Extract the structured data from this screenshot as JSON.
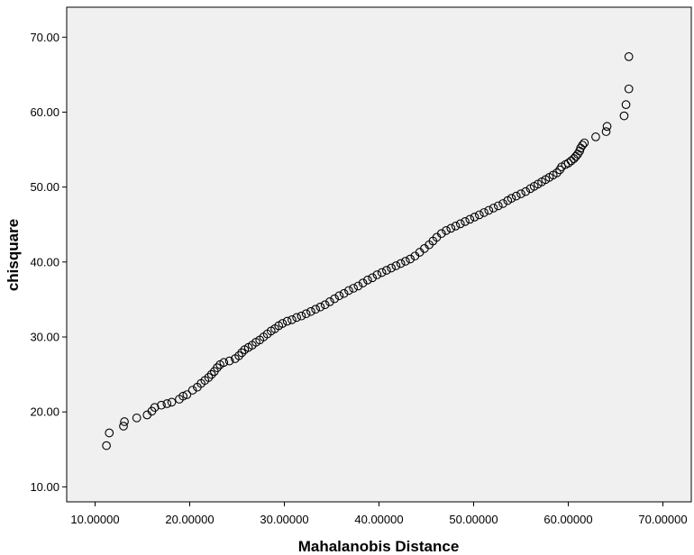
{
  "chart_data": {
    "type": "scatter",
    "title": "",
    "xlabel": "Mahalanobis Distance",
    "ylabel": "chisquare",
    "xlim": [
      7,
      73
    ],
    "ylim": [
      8,
      74
    ],
    "x_ticks": [
      10,
      20,
      30,
      40,
      50,
      60,
      70
    ],
    "y_ticks": [
      10,
      20,
      30,
      40,
      50,
      60,
      70
    ],
    "x_tick_labels": [
      "10.00000",
      "20.00000",
      "30.00000",
      "40.00000",
      "50.00000",
      "60.00000",
      "70.00000"
    ],
    "y_tick_labels": [
      "10.00",
      "20.00",
      "30.00",
      "40.00",
      "50.00",
      "60.00",
      "70.00"
    ],
    "grid": false,
    "legend": "none",
    "colors": {
      "plot_background": "#f0f0f0",
      "marker_stroke": "#000000",
      "marker_fill": "none"
    },
    "series": [
      {
        "points": [
          [
            11.2,
            15.5
          ],
          [
            11.5,
            17.2
          ],
          [
            13.0,
            18.1
          ],
          [
            13.1,
            18.7
          ],
          [
            14.4,
            19.2
          ],
          [
            15.5,
            19.6
          ],
          [
            16.0,
            20.1
          ],
          [
            16.3,
            20.6
          ],
          [
            17.0,
            20.9
          ],
          [
            17.6,
            21.1
          ],
          [
            18.1,
            21.3
          ],
          [
            18.9,
            21.7
          ],
          [
            19.3,
            22.1
          ],
          [
            19.7,
            22.3
          ],
          [
            20.3,
            22.9
          ],
          [
            20.8,
            23.3
          ],
          [
            21.2,
            23.8
          ],
          [
            21.6,
            24.2
          ],
          [
            22.0,
            24.6
          ],
          [
            22.3,
            25.0
          ],
          [
            22.6,
            25.4
          ],
          [
            22.9,
            25.9
          ],
          [
            23.2,
            26.3
          ],
          [
            23.6,
            26.6
          ],
          [
            24.2,
            26.8
          ],
          [
            24.8,
            27.1
          ],
          [
            25.2,
            27.5
          ],
          [
            25.5,
            27.9
          ],
          [
            25.8,
            28.3
          ],
          [
            26.2,
            28.6
          ],
          [
            26.6,
            28.9
          ],
          [
            27.0,
            29.3
          ],
          [
            27.4,
            29.6
          ],
          [
            27.8,
            30.0
          ],
          [
            28.2,
            30.4
          ],
          [
            28.6,
            30.8
          ],
          [
            29.0,
            31.1
          ],
          [
            29.4,
            31.5
          ],
          [
            29.8,
            31.8
          ],
          [
            30.3,
            32.1
          ],
          [
            30.8,
            32.3
          ],
          [
            31.3,
            32.6
          ],
          [
            31.8,
            32.8
          ],
          [
            32.3,
            33.1
          ],
          [
            32.8,
            33.4
          ],
          [
            33.3,
            33.7
          ],
          [
            33.8,
            34.0
          ],
          [
            34.3,
            34.3
          ],
          [
            34.8,
            34.7
          ],
          [
            35.3,
            35.1
          ],
          [
            35.8,
            35.5
          ],
          [
            36.3,
            35.8
          ],
          [
            36.8,
            36.2
          ],
          [
            37.3,
            36.5
          ],
          [
            37.8,
            36.8
          ],
          [
            38.3,
            37.2
          ],
          [
            38.8,
            37.6
          ],
          [
            39.3,
            37.9
          ],
          [
            39.8,
            38.3
          ],
          [
            40.3,
            38.6
          ],
          [
            40.8,
            38.9
          ],
          [
            41.3,
            39.2
          ],
          [
            41.8,
            39.5
          ],
          [
            42.3,
            39.8
          ],
          [
            42.8,
            40.1
          ],
          [
            43.3,
            40.4
          ],
          [
            43.8,
            40.8
          ],
          [
            44.3,
            41.3
          ],
          [
            44.8,
            41.8
          ],
          [
            45.3,
            42.3
          ],
          [
            45.7,
            42.8
          ],
          [
            46.1,
            43.3
          ],
          [
            46.6,
            43.8
          ],
          [
            47.1,
            44.2
          ],
          [
            47.6,
            44.5
          ],
          [
            48.1,
            44.8
          ],
          [
            48.6,
            45.1
          ],
          [
            49.1,
            45.4
          ],
          [
            49.6,
            45.7
          ],
          [
            50.1,
            46.0
          ],
          [
            50.6,
            46.3
          ],
          [
            51.1,
            46.6
          ],
          [
            51.6,
            46.9
          ],
          [
            52.1,
            47.2
          ],
          [
            52.6,
            47.5
          ],
          [
            53.1,
            47.8
          ],
          [
            53.6,
            48.2
          ],
          [
            54.0,
            48.5
          ],
          [
            54.5,
            48.8
          ],
          [
            55.0,
            49.1
          ],
          [
            55.5,
            49.4
          ],
          [
            56.0,
            49.8
          ],
          [
            56.4,
            50.1
          ],
          [
            56.8,
            50.4
          ],
          [
            57.2,
            50.7
          ],
          [
            57.6,
            51.0
          ],
          [
            58.0,
            51.3
          ],
          [
            58.4,
            51.6
          ],
          [
            58.8,
            51.9
          ],
          [
            59.1,
            52.3
          ],
          [
            59.3,
            52.7
          ],
          [
            59.7,
            53.0
          ],
          [
            60.0,
            53.2
          ],
          [
            60.3,
            53.5
          ],
          [
            60.6,
            53.8
          ],
          [
            60.8,
            54.1
          ],
          [
            61.0,
            54.4
          ],
          [
            61.2,
            54.8
          ],
          [
            61.3,
            55.2
          ],
          [
            61.5,
            55.6
          ],
          [
            61.7,
            55.9
          ],
          [
            62.9,
            56.7
          ],
          [
            64.0,
            57.4
          ],
          [
            64.1,
            58.1
          ],
          [
            65.9,
            59.5
          ],
          [
            66.1,
            61.0
          ],
          [
            66.4,
            63.1
          ],
          [
            66.4,
            67.4
          ]
        ]
      }
    ]
  }
}
